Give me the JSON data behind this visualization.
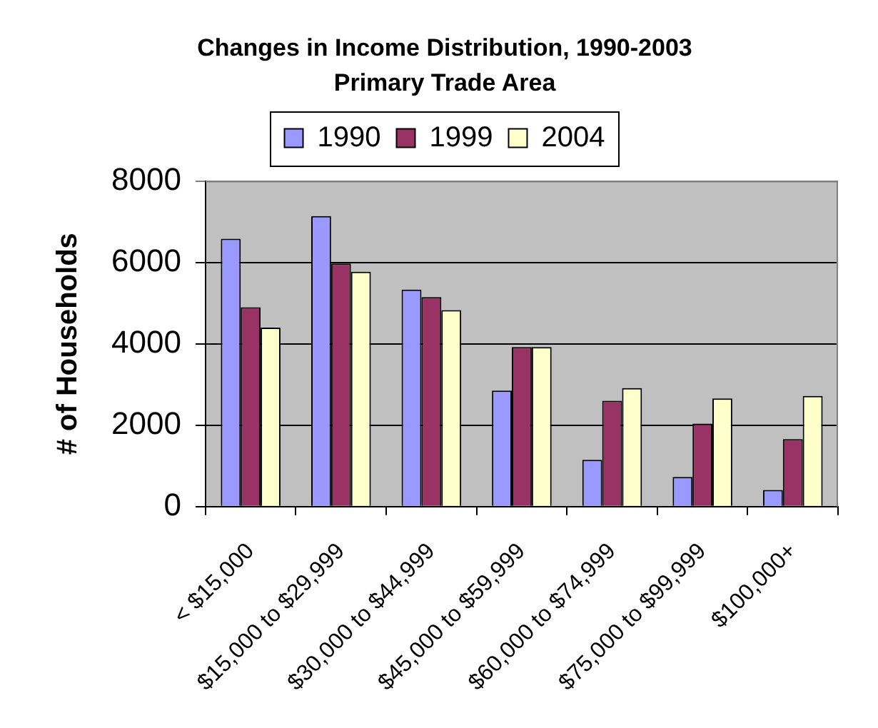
{
  "chart_data": {
    "type": "bar",
    "title": "Changes in Income Distribution, 1990-2003",
    "subtitle": "Primary Trade Area",
    "ylabel": "# of Households",
    "categories": [
      "< $15,000",
      "$15,000 to $29,999",
      "$30,000 to $44,999",
      "$45,000 to $59,999",
      "$60,000 to $74,999",
      "$75,000 to $99,999",
      "$100,000+"
    ],
    "series": [
      {
        "name": "1990",
        "color": "#9999ff",
        "values": [
          6580,
          7140,
          5330,
          2850,
          1150,
          730,
          410
        ]
      },
      {
        "name": "1999",
        "color": "#993366",
        "values": [
          4900,
          5970,
          5150,
          3920,
          2600,
          2040,
          1660
        ]
      },
      {
        "name": "2004",
        "color": "#ffffcc",
        "values": [
          4400,
          5770,
          4830,
          3920,
          2910,
          2660,
          2720
        ]
      }
    ],
    "ylim": [
      0,
      8000
    ],
    "yticks": [
      0,
      2000,
      4000,
      6000,
      8000
    ],
    "grid": "y",
    "legend": "top"
  }
}
